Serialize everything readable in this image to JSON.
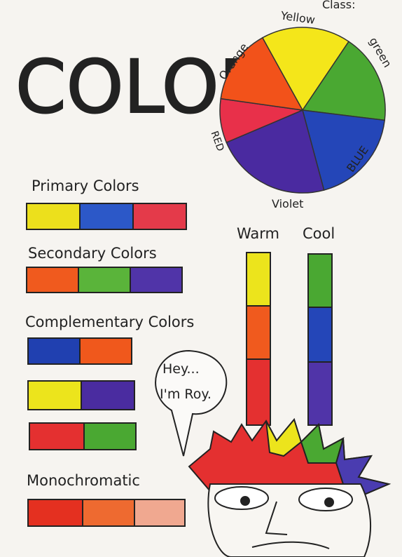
{
  "header": {
    "class_label": "Class:",
    "title": "COLOR"
  },
  "wheel": {
    "labels": [
      "Yellow",
      "green",
      "BLUE",
      "Violet",
      "RED",
      "Orange"
    ]
  },
  "sections": {
    "primary": "Primary Colors",
    "secondary": "Secondary Colors",
    "complementary": "Complementary Colors",
    "monochromatic": "Monochromatic"
  },
  "temperature": {
    "warm": "Warm",
    "cool": "Cool"
  },
  "speech": {
    "line1": "Hey...",
    "line2": "I'm Roy."
  }
}
